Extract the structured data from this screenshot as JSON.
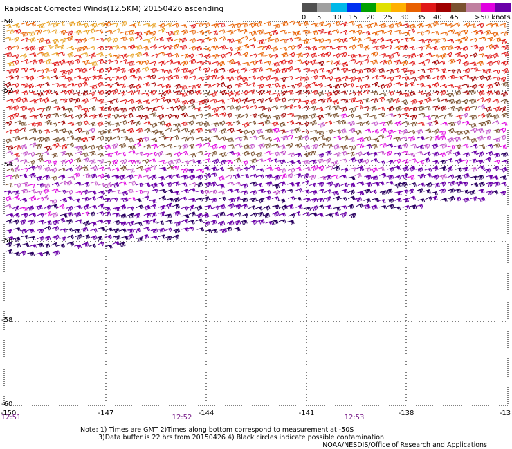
{
  "title": "Rapidscat Corrected Winds(12.5KM) 20150426 ascending",
  "legend": {
    "colors": [
      "#505050",
      "#a0a0a0",
      "#00b8e8",
      "#0030f0",
      "#00a000",
      "#e0e000",
      "#ffb000",
      "#e86000",
      "#e01818",
      "#a00000",
      "#7a5230",
      "#c080a0",
      "#e000e0",
      "#6a00a8"
    ],
    "labels": [
      "0",
      "5",
      "10",
      "15",
      "20",
      "25",
      "30",
      "35",
      "40",
      "45",
      ">50 knots"
    ]
  },
  "lat_labels": [
    "-50",
    "-52",
    "-54",
    "-56",
    "-58",
    "-60"
  ],
  "lon_labels": [
    "-150",
    "-147",
    "-144",
    "-141",
    "-138",
    "-13"
  ],
  "time_labels": [
    "12:51",
    "12:52",
    "12:53"
  ],
  "notes": [
    "Note: 1) Times are GMT 2)Times along bottom correspond to measurement at -50S",
    "3)Data buffer is 22 hrs from 20150426 4) Black circles indicate possible contamination"
  ],
  "credit": "NOAA/NESDIS/Office of Research and Applications"
}
